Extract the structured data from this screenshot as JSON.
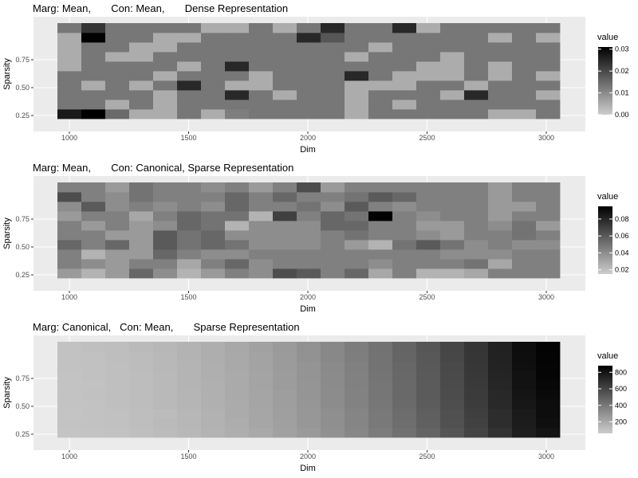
{
  "chart_data": [
    {
      "type": "heatmap",
      "title": "Marg: Mean,       Con: Mean,       Dense Representation",
      "xlabel": "Dim",
      "ylabel": "Sparsity",
      "x_ticks": [
        "1000",
        "1500",
        "2000",
        "2500",
        "3000"
      ],
      "y_ticks": [
        "0.25",
        "0.50",
        "0.75"
      ],
      "x": [
        1000,
        1100,
        1200,
        1300,
        1400,
        1500,
        1600,
        1700,
        1800,
        1900,
        2000,
        2100,
        2200,
        2300,
        2400,
        2500,
        2600,
        2700,
        2800,
        2900,
        3000
      ],
      "y": [
        0.05,
        0.15,
        0.25,
        0.35,
        0.45,
        0.55,
        0.65,
        0.75,
        0.85,
        0.95
      ],
      "legend_title": "value",
      "legend_ticks": [
        "0.00",
        "0.01",
        "0.02",
        "0.03"
      ],
      "value_range": [
        0,
        0.031
      ],
      "values": [
        [
          0.027,
          0.031,
          0.015,
          0.005,
          0.005,
          0.013,
          0.005,
          0.012,
          0.013,
          0.013,
          0.013,
          0.013,
          0.005,
          0.013,
          0.013,
          0.013,
          0.013,
          0.013,
          0.005,
          0.005,
          0.013
        ],
        [
          0.013,
          0.013,
          0.005,
          0.013,
          0.005,
          0.013,
          0.013,
          0.013,
          0.013,
          0.013,
          0.013,
          0.013,
          0.005,
          0.013,
          0.005,
          0.013,
          0.013,
          0.013,
          0.013,
          0.013,
          0.013
        ],
        [
          0.013,
          0.013,
          0.013,
          0.013,
          0.005,
          0.013,
          0.013,
          0.025,
          0.013,
          0.005,
          0.013,
          0.013,
          0.005,
          0.013,
          0.013,
          0.013,
          0.005,
          0.025,
          0.013,
          0.013,
          0.005
        ],
        [
          0.013,
          0.005,
          0.013,
          0.005,
          0.013,
          0.025,
          0.013,
          0.005,
          0.005,
          0.013,
          0.013,
          0.013,
          0.005,
          0.005,
          0.005,
          0.013,
          0.013,
          0.005,
          0.013,
          0.013,
          0.013
        ],
        [
          0.013,
          0.013,
          0.013,
          0.013,
          0.005,
          0.013,
          0.013,
          0.013,
          0.005,
          0.013,
          0.013,
          0.013,
          0.025,
          0.013,
          0.005,
          0.005,
          0.005,
          0.013,
          0.005,
          0.013,
          0.005
        ],
        [
          0.005,
          0.013,
          0.013,
          0.013,
          0.013,
          0.005,
          0.013,
          0.025,
          0.013,
          0.013,
          0.013,
          0.013,
          0.013,
          0.013,
          0.013,
          0.005,
          0.005,
          0.013,
          0.005,
          0.013,
          0.013
        ],
        [
          0.005,
          0.013,
          0.005,
          0.005,
          0.013,
          0.013,
          0.013,
          0.013,
          0.013,
          0.013,
          0.013,
          0.013,
          0.005,
          0.013,
          0.013,
          0.013,
          0.005,
          0.013,
          0.013,
          0.013,
          0.013
        ],
        [
          0.005,
          0.013,
          0.013,
          0.005,
          0.005,
          0.013,
          0.013,
          0.013,
          0.013,
          0.013,
          0.013,
          0.013,
          0.013,
          0.005,
          0.013,
          0.013,
          0.013,
          0.013,
          0.013,
          0.013,
          0.013
        ],
        [
          0.005,
          0.031,
          0.013,
          0.013,
          0.005,
          0.005,
          0.013,
          0.013,
          0.013,
          0.013,
          0.025,
          0.018,
          0.013,
          0.013,
          0.013,
          0.013,
          0.013,
          0.013,
          0.005,
          0.013,
          0.005
        ],
        [
          0.013,
          0.023,
          0.013,
          0.013,
          0.013,
          0.013,
          0.005,
          0.005,
          0.013,
          0.005,
          0.013,
          0.025,
          0.013,
          0.013,
          0.025,
          0.005,
          0.013,
          0.013,
          0.013,
          0.013,
          0.013
        ]
      ]
    },
    {
      "type": "heatmap",
      "title": "Marg: Mean,       Con: Canonical, Sparse Representation",
      "xlabel": "Dim",
      "ylabel": "Sparsity",
      "x_ticks": [
        "1000",
        "1500",
        "2000",
        "2500",
        "3000"
      ],
      "y_ticks": [
        "0.25",
        "0.50",
        "0.75"
      ],
      "x": [
        1000,
        1100,
        1200,
        1300,
        1400,
        1500,
        1600,
        1700,
        1800,
        1900,
        2000,
        2100,
        2200,
        2300,
        2400,
        2500,
        2600,
        2700,
        2800,
        2900,
        3000
      ],
      "y": [
        0.05,
        0.15,
        0.25,
        0.35,
        0.45,
        0.55,
        0.65,
        0.75,
        0.85,
        0.95
      ],
      "legend_title": "value",
      "legend_ticks": [
        "0.02",
        "0.04",
        "0.06",
        "0.08"
      ],
      "value_range": [
        0.015,
        0.095
      ],
      "values": [
        [
          0.035,
          0.025,
          0.035,
          0.055,
          0.04,
          0.025,
          0.035,
          0.045,
          0.04,
          0.065,
          0.06,
          0.045,
          0.055,
          0.03,
          0.045,
          0.025,
          0.025,
          0.03,
          0.045,
          0.045,
          0.045
        ],
        [
          0.045,
          0.04,
          0.035,
          0.045,
          0.045,
          0.03,
          0.045,
          0.055,
          0.04,
          0.045,
          0.045,
          0.045,
          0.045,
          0.04,
          0.045,
          0.045,
          0.045,
          0.05,
          0.03,
          0.045,
          0.045
        ],
        [
          0.045,
          0.025,
          0.035,
          0.035,
          0.055,
          0.045,
          0.04,
          0.04,
          0.045,
          0.045,
          0.045,
          0.045,
          0.045,
          0.045,
          0.045,
          0.045,
          0.04,
          0.04,
          0.04,
          0.045,
          0.045
        ],
        [
          0.055,
          0.045,
          0.055,
          0.035,
          0.06,
          0.05,
          0.055,
          0.05,
          0.04,
          0.04,
          0.04,
          0.045,
          0.035,
          0.025,
          0.05,
          0.06,
          0.05,
          0.04,
          0.045,
          0.04,
          0.04
        ],
        [
          0.045,
          0.045,
          0.035,
          0.035,
          0.06,
          0.05,
          0.055,
          0.04,
          0.04,
          0.04,
          0.04,
          0.045,
          0.05,
          0.045,
          0.045,
          0.04,
          0.035,
          0.045,
          0.045,
          0.05,
          0.045
        ],
        [
          0.045,
          0.035,
          0.045,
          0.035,
          0.04,
          0.055,
          0.05,
          0.025,
          0.04,
          0.04,
          0.04,
          0.055,
          0.055,
          0.045,
          0.045,
          0.035,
          0.035,
          0.045,
          0.04,
          0.05,
          0.035
        ],
        [
          0.035,
          0.045,
          0.045,
          0.03,
          0.045,
          0.055,
          0.05,
          0.05,
          0.025,
          0.07,
          0.045,
          0.055,
          0.05,
          0.095,
          0.045,
          0.04,
          0.045,
          0.045,
          0.035,
          0.045,
          0.045
        ],
        [
          0.04,
          0.06,
          0.04,
          0.045,
          0.04,
          0.045,
          0.04,
          0.055,
          0.045,
          0.045,
          0.05,
          0.04,
          0.06,
          0.045,
          0.04,
          0.045,
          0.045,
          0.045,
          0.035,
          0.035,
          0.045
        ],
        [
          0.065,
          0.045,
          0.04,
          0.05,
          0.045,
          0.045,
          0.045,
          0.055,
          0.045,
          0.055,
          0.045,
          0.045,
          0.05,
          0.06,
          0.055,
          0.045,
          0.045,
          0.045,
          0.035,
          0.045,
          0.045
        ],
        [
          0.045,
          0.045,
          0.035,
          0.05,
          0.045,
          0.045,
          0.04,
          0.045,
          0.035,
          0.045,
          0.065,
          0.035,
          0.045,
          0.045,
          0.045,
          0.045,
          0.045,
          0.045,
          0.035,
          0.045,
          0.045
        ]
      ]
    },
    {
      "type": "heatmap",
      "title": "Marg: Canonical,   Con: Mean,       Sparse Representation",
      "xlabel": "Dim",
      "ylabel": "Sparsity",
      "x_ticks": [
        "1000",
        "1500",
        "2000",
        "2500",
        "3000"
      ],
      "y_ticks": [
        "0.25",
        "0.50",
        "0.75"
      ],
      "x": [
        1000,
        1100,
        1200,
        1300,
        1400,
        1500,
        1600,
        1700,
        1800,
        1900,
        2000,
        2100,
        2200,
        2300,
        2400,
        2500,
        2600,
        2700,
        2800,
        2900,
        3000
      ],
      "y": [
        0.05,
        0.15,
        0.25,
        0.35,
        0.45,
        0.55,
        0.65,
        0.75,
        0.85,
        0.95
      ],
      "legend_title": "value",
      "legend_ticks": [
        "200",
        "400",
        "600",
        "800"
      ],
      "value_range": [
        60,
        880
      ],
      "values": [
        [
          95,
          100,
          105,
          115,
          130,
          145,
          165,
          185,
          205,
          235,
          265,
          300,
          340,
          385,
          430,
          480,
          540,
          610,
          680,
          760,
          800
        ],
        [
          100,
          105,
          110,
          120,
          135,
          150,
          170,
          190,
          215,
          240,
          275,
          310,
          350,
          395,
          440,
          495,
          555,
          620,
          700,
          770,
          820
        ],
        [
          95,
          105,
          110,
          120,
          130,
          150,
          170,
          195,
          215,
          245,
          275,
          310,
          350,
          395,
          445,
          500,
          560,
          630,
          700,
          775,
          830
        ],
        [
          100,
          105,
          115,
          125,
          140,
          155,
          175,
          195,
          220,
          250,
          280,
          320,
          360,
          405,
          455,
          510,
          570,
          640,
          715,
          790,
          830
        ],
        [
          100,
          110,
          115,
          125,
          140,
          155,
          175,
          200,
          220,
          250,
          285,
          320,
          360,
          410,
          460,
          515,
          575,
          645,
          720,
          800,
          840
        ],
        [
          100,
          105,
          115,
          125,
          140,
          160,
          175,
          200,
          225,
          255,
          285,
          325,
          365,
          410,
          460,
          515,
          580,
          650,
          730,
          810,
          850
        ],
        [
          100,
          110,
          115,
          125,
          140,
          160,
          180,
          200,
          225,
          255,
          290,
          325,
          365,
          415,
          465,
          520,
          585,
          655,
          735,
          810,
          860
        ],
        [
          105,
          110,
          115,
          130,
          145,
          160,
          180,
          205,
          230,
          260,
          290,
          330,
          370,
          420,
          470,
          525,
          590,
          660,
          740,
          820,
          860
        ],
        [
          105,
          110,
          120,
          130,
          145,
          165,
          185,
          205,
          230,
          260,
          295,
          335,
          375,
          420,
          475,
          530,
          595,
          665,
          745,
          825,
          865
        ],
        [
          105,
          115,
          120,
          135,
          150,
          165,
          185,
          210,
          235,
          265,
          300,
          335,
          380,
          425,
          480,
          535,
          600,
          670,
          750,
          830,
          870
        ]
      ]
    }
  ]
}
